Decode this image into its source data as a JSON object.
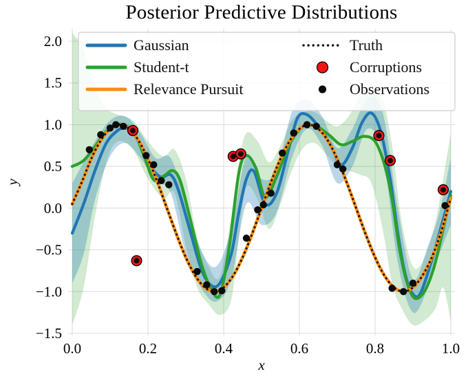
{
  "chart_data": {
    "type": "line",
    "title": "Posterior Predictive Distributions",
    "xlabel": "x",
    "ylabel": "y",
    "xlim": [
      -0.011,
      1.011
    ],
    "ylim": [
      -1.525,
      2.148
    ],
    "xticks": [
      0.0,
      0.2,
      0.4,
      0.6,
      0.8,
      1.0
    ],
    "yticks": [
      2.0,
      1.5,
      1.0,
      0.5,
      0.0,
      -0.5,
      -1.0,
      -1.5
    ],
    "grid": true,
    "grid_color": "#dedede",
    "bands": [
      {
        "name": "student-t-uncertainty-band",
        "color": "#2ca02c",
        "alpha": 0.22,
        "x": [
          0.0,
          0.03,
          0.06,
          0.09,
          0.12,
          0.16,
          0.2,
          0.24,
          0.27,
          0.3,
          0.33,
          0.36,
          0.39,
          0.42,
          0.44,
          0.46,
          0.49,
          0.52,
          0.55,
          0.58,
          0.61,
          0.64,
          0.67,
          0.7,
          0.73,
          0.76,
          0.79,
          0.82,
          0.845,
          0.87,
          0.9,
          0.93,
          0.96,
          0.98,
          1.0
        ],
        "hi": [
          2.1,
          1.9,
          1.45,
          1.2,
          1.12,
          1.05,
          0.8,
          0.62,
          0.7,
          0.35,
          -0.35,
          -0.7,
          -0.82,
          -0.1,
          0.55,
          0.9,
          0.8,
          0.55,
          0.75,
          1.05,
          1.15,
          1.15,
          1.05,
          0.98,
          1.1,
          1.35,
          1.48,
          1.3,
          0.75,
          -0.15,
          -0.7,
          -0.6,
          -0.15,
          0.35,
          0.9
        ],
        "lo": [
          -1.4,
          -0.95,
          -0.1,
          0.55,
          0.8,
          0.7,
          0.35,
          0.12,
          0.18,
          -0.45,
          -0.95,
          -1.15,
          -1.28,
          -1.1,
          -0.35,
          0.25,
          0.1,
          -0.25,
          0.05,
          0.45,
          0.72,
          0.78,
          0.65,
          0.5,
          0.45,
          0.4,
          0.3,
          -0.25,
          -0.9,
          -1.2,
          -1.4,
          -1.35,
          -1.2,
          -0.95,
          -1.35
        ]
      },
      {
        "name": "gaussian-uncertainty-band",
        "color": "#1f77b4",
        "alpha": 0.3,
        "x": [
          0.0,
          0.03,
          0.06,
          0.1,
          0.14,
          0.18,
          0.22,
          0.26,
          0.3,
          0.34,
          0.38,
          0.42,
          0.46,
          0.5,
          0.54,
          0.58,
          0.62,
          0.66,
          0.7,
          0.74,
          0.78,
          0.82,
          0.86,
          0.9,
          0.94,
          0.97,
          1.0
        ],
        "hi": [
          0.3,
          0.55,
          0.8,
          1.05,
          1.1,
          0.9,
          0.6,
          0.6,
          0.05,
          -0.5,
          -0.7,
          -0.25,
          0.62,
          0.35,
          0.45,
          1.15,
          1.3,
          1.1,
          0.72,
          0.95,
          1.32,
          1.15,
          0.0,
          -0.85,
          -0.45,
          -0.05,
          0.6
        ],
        "lo": [
          -0.9,
          -0.55,
          0.1,
          0.62,
          0.78,
          0.6,
          0.33,
          0.18,
          -0.55,
          -0.95,
          -1.12,
          -0.85,
          0.05,
          -0.2,
          -0.05,
          0.6,
          0.95,
          0.75,
          0.3,
          0.5,
          0.95,
          0.65,
          -0.65,
          -1.25,
          -0.95,
          -0.55,
          -0.2
        ]
      }
    ],
    "series": [
      {
        "name": "Gaussian",
        "color": "#1f77b4",
        "width": 4.2,
        "x": [
          0.0,
          0.03,
          0.06,
          0.09,
          0.12,
          0.14,
          0.16,
          0.18,
          0.21,
          0.235,
          0.26,
          0.28,
          0.31,
          0.34,
          0.365,
          0.39,
          0.42,
          0.44,
          0.46,
          0.48,
          0.51,
          0.54,
          0.57,
          0.595,
          0.62,
          0.65,
          0.68,
          0.71,
          0.74,
          0.765,
          0.79,
          0.815,
          0.84,
          0.86,
          0.88,
          0.9,
          0.92,
          0.95,
          0.975,
          1.0
        ],
        "y": [
          -0.3,
          0.05,
          0.45,
          0.78,
          0.93,
          0.96,
          0.9,
          0.76,
          0.48,
          0.37,
          0.4,
          0.22,
          -0.25,
          -0.72,
          -0.92,
          -0.9,
          -0.55,
          -0.05,
          0.35,
          0.44,
          0.05,
          0.18,
          0.68,
          1.08,
          1.12,
          0.98,
          0.78,
          0.52,
          0.72,
          1.02,
          1.14,
          0.92,
          0.35,
          -0.3,
          -0.8,
          -1.03,
          -1.02,
          -0.62,
          -0.22,
          0.2
        ]
      },
      {
        "name": "Student-t",
        "color": "#2ca02c",
        "width": 4.2,
        "x": [
          0.0,
          0.03,
          0.06,
          0.09,
          0.115,
          0.14,
          0.165,
          0.19,
          0.215,
          0.24,
          0.265,
          0.285,
          0.31,
          0.34,
          0.365,
          0.39,
          0.415,
          0.44,
          0.46,
          0.485,
          0.51,
          0.54,
          0.57,
          0.6,
          0.625,
          0.65,
          0.68,
          0.71,
          0.74,
          0.77,
          0.8,
          0.825,
          0.845,
          0.865,
          0.885,
          0.905,
          0.93,
          0.955,
          0.98,
          1.0
        ],
        "y": [
          0.5,
          0.57,
          0.74,
          0.92,
          1.0,
          0.99,
          0.89,
          0.62,
          0.34,
          0.38,
          0.45,
          0.33,
          -0.1,
          -0.65,
          -0.95,
          -1.04,
          -0.45,
          0.42,
          0.63,
          0.48,
          0.13,
          0.38,
          0.73,
          0.94,
          1.0,
          0.97,
          0.87,
          0.76,
          0.8,
          0.86,
          0.8,
          0.52,
          0.1,
          -0.5,
          -0.9,
          -1.08,
          -1.0,
          -0.72,
          -0.25,
          0.15
        ]
      },
      {
        "name": "Relevance Pursuit",
        "color": "#ff8c0e",
        "width": 4.6,
        "x": [
          0,
          0.025,
          0.05,
          0.075,
          0.1,
          0.125,
          0.15,
          0.175,
          0.2,
          0.225,
          0.25,
          0.275,
          0.3,
          0.325,
          0.35,
          0.375,
          0.4,
          0.425,
          0.45,
          0.475,
          0.5,
          0.525,
          0.55,
          0.575,
          0.6,
          0.625,
          0.65,
          0.675,
          0.7,
          0.725,
          0.75,
          0.775,
          0.8,
          0.825,
          0.85,
          0.875,
          0.9,
          0.925,
          0.95,
          0.975,
          1
        ],
        "y": [
          0.05,
          0.31,
          0.59,
          0.81,
          0.95,
          1,
          0.95,
          0.81,
          0.59,
          0.31,
          0,
          -0.31,
          -0.59,
          -0.81,
          -0.95,
          -1,
          -0.95,
          -0.81,
          -0.59,
          -0.31,
          0,
          0.31,
          0.59,
          0.81,
          0.95,
          1,
          0.95,
          0.81,
          0.59,
          0.31,
          0,
          -0.31,
          -0.59,
          -0.81,
          -0.95,
          -1,
          -0.95,
          -0.81,
          -0.59,
          -0.28,
          0.12
        ]
      },
      {
        "name": "Truth",
        "color": "#141414",
        "width": 3.2,
        "dash": "dotted",
        "x": [
          0,
          0.025,
          0.05,
          0.075,
          0.1,
          0.125,
          0.15,
          0.175,
          0.2,
          0.225,
          0.25,
          0.275,
          0.3,
          0.325,
          0.35,
          0.375,
          0.4,
          0.425,
          0.45,
          0.475,
          0.5,
          0.525,
          0.55,
          0.575,
          0.6,
          0.625,
          0.65,
          0.675,
          0.7,
          0.725,
          0.75,
          0.775,
          0.8,
          0.825,
          0.85,
          0.875,
          0.9,
          0.925,
          0.95,
          0.975,
          1
        ],
        "y": [
          0.05,
          0.31,
          0.59,
          0.81,
          0.95,
          1,
          0.95,
          0.81,
          0.59,
          0.31,
          0,
          -0.31,
          -0.59,
          -0.81,
          -0.95,
          -1,
          -0.95,
          -0.81,
          -0.59,
          -0.31,
          0,
          0.31,
          0.59,
          0.81,
          0.95,
          1,
          0.95,
          0.81,
          0.59,
          0.31,
          0,
          -0.31,
          -0.59,
          -0.81,
          -0.95,
          -1,
          -0.95,
          -0.81,
          -0.59,
          -0.28,
          0.12
        ]
      }
    ],
    "scatter": [
      {
        "name": "Corruptions",
        "color": "#f51414",
        "edge": "#000000",
        "edge_width": 1.3,
        "r": 7.4,
        "center_dot": "#0a0a0a",
        "center_r": 4.0,
        "points": [
          [
            0.16,
            0.93
          ],
          [
            0.17,
            -0.63
          ],
          [
            0.425,
            0.62
          ],
          [
            0.445,
            0.65
          ],
          [
            0.81,
            0.87
          ],
          [
            0.84,
            0.57
          ],
          [
            0.98,
            0.22
          ]
        ]
      },
      {
        "name": "Observations",
        "color": "#0a0a0a",
        "r": 5.2,
        "points": [
          [
            0.045,
            0.7
          ],
          [
            0.075,
            0.88
          ],
          [
            0.1,
            0.96
          ],
          [
            0.115,
            1.0
          ],
          [
            0.135,
            0.98
          ],
          [
            0.195,
            0.63
          ],
          [
            0.215,
            0.52
          ],
          [
            0.235,
            0.33
          ],
          [
            0.255,
            0.28
          ],
          [
            0.33,
            -0.76
          ],
          [
            0.355,
            -0.92
          ],
          [
            0.375,
            -1.0
          ],
          [
            0.395,
            -0.99
          ],
          [
            0.46,
            -0.36
          ],
          [
            0.49,
            -0.02
          ],
          [
            0.505,
            0.04
          ],
          [
            0.525,
            0.18
          ],
          [
            0.555,
            0.66
          ],
          [
            0.585,
            0.9
          ],
          [
            0.62,
            1.0
          ],
          [
            0.645,
            0.98
          ],
          [
            0.7,
            0.52
          ],
          [
            0.715,
            0.47
          ],
          [
            0.845,
            -0.96
          ],
          [
            0.875,
            -1.0
          ],
          [
            0.9,
            -0.9
          ],
          [
            0.985,
            0.03
          ]
        ]
      }
    ],
    "legend": {
      "position": "upper center",
      "entries": [
        {
          "label": "Gaussian",
          "marker": "line",
          "color": "#1f77b4",
          "col": 0,
          "row": 0
        },
        {
          "label": "Student-t",
          "marker": "line",
          "color": "#2ca02c",
          "col": 0,
          "row": 1
        },
        {
          "label": "Relevance Pursuit",
          "marker": "line",
          "color": "#ff8c0e",
          "col": 0,
          "row": 2
        },
        {
          "label": "Truth",
          "marker": "dotted-line",
          "color": "#141414",
          "col": 1,
          "row": 0
        },
        {
          "label": "Corruptions",
          "marker": "dot",
          "color": "#f51414",
          "edge": "#000000",
          "r": 8,
          "col": 1,
          "row": 1
        },
        {
          "label": "Observations",
          "marker": "dot",
          "color": "#0a0a0a",
          "r": 5.6,
          "col": 1,
          "row": 2
        }
      ]
    }
  }
}
